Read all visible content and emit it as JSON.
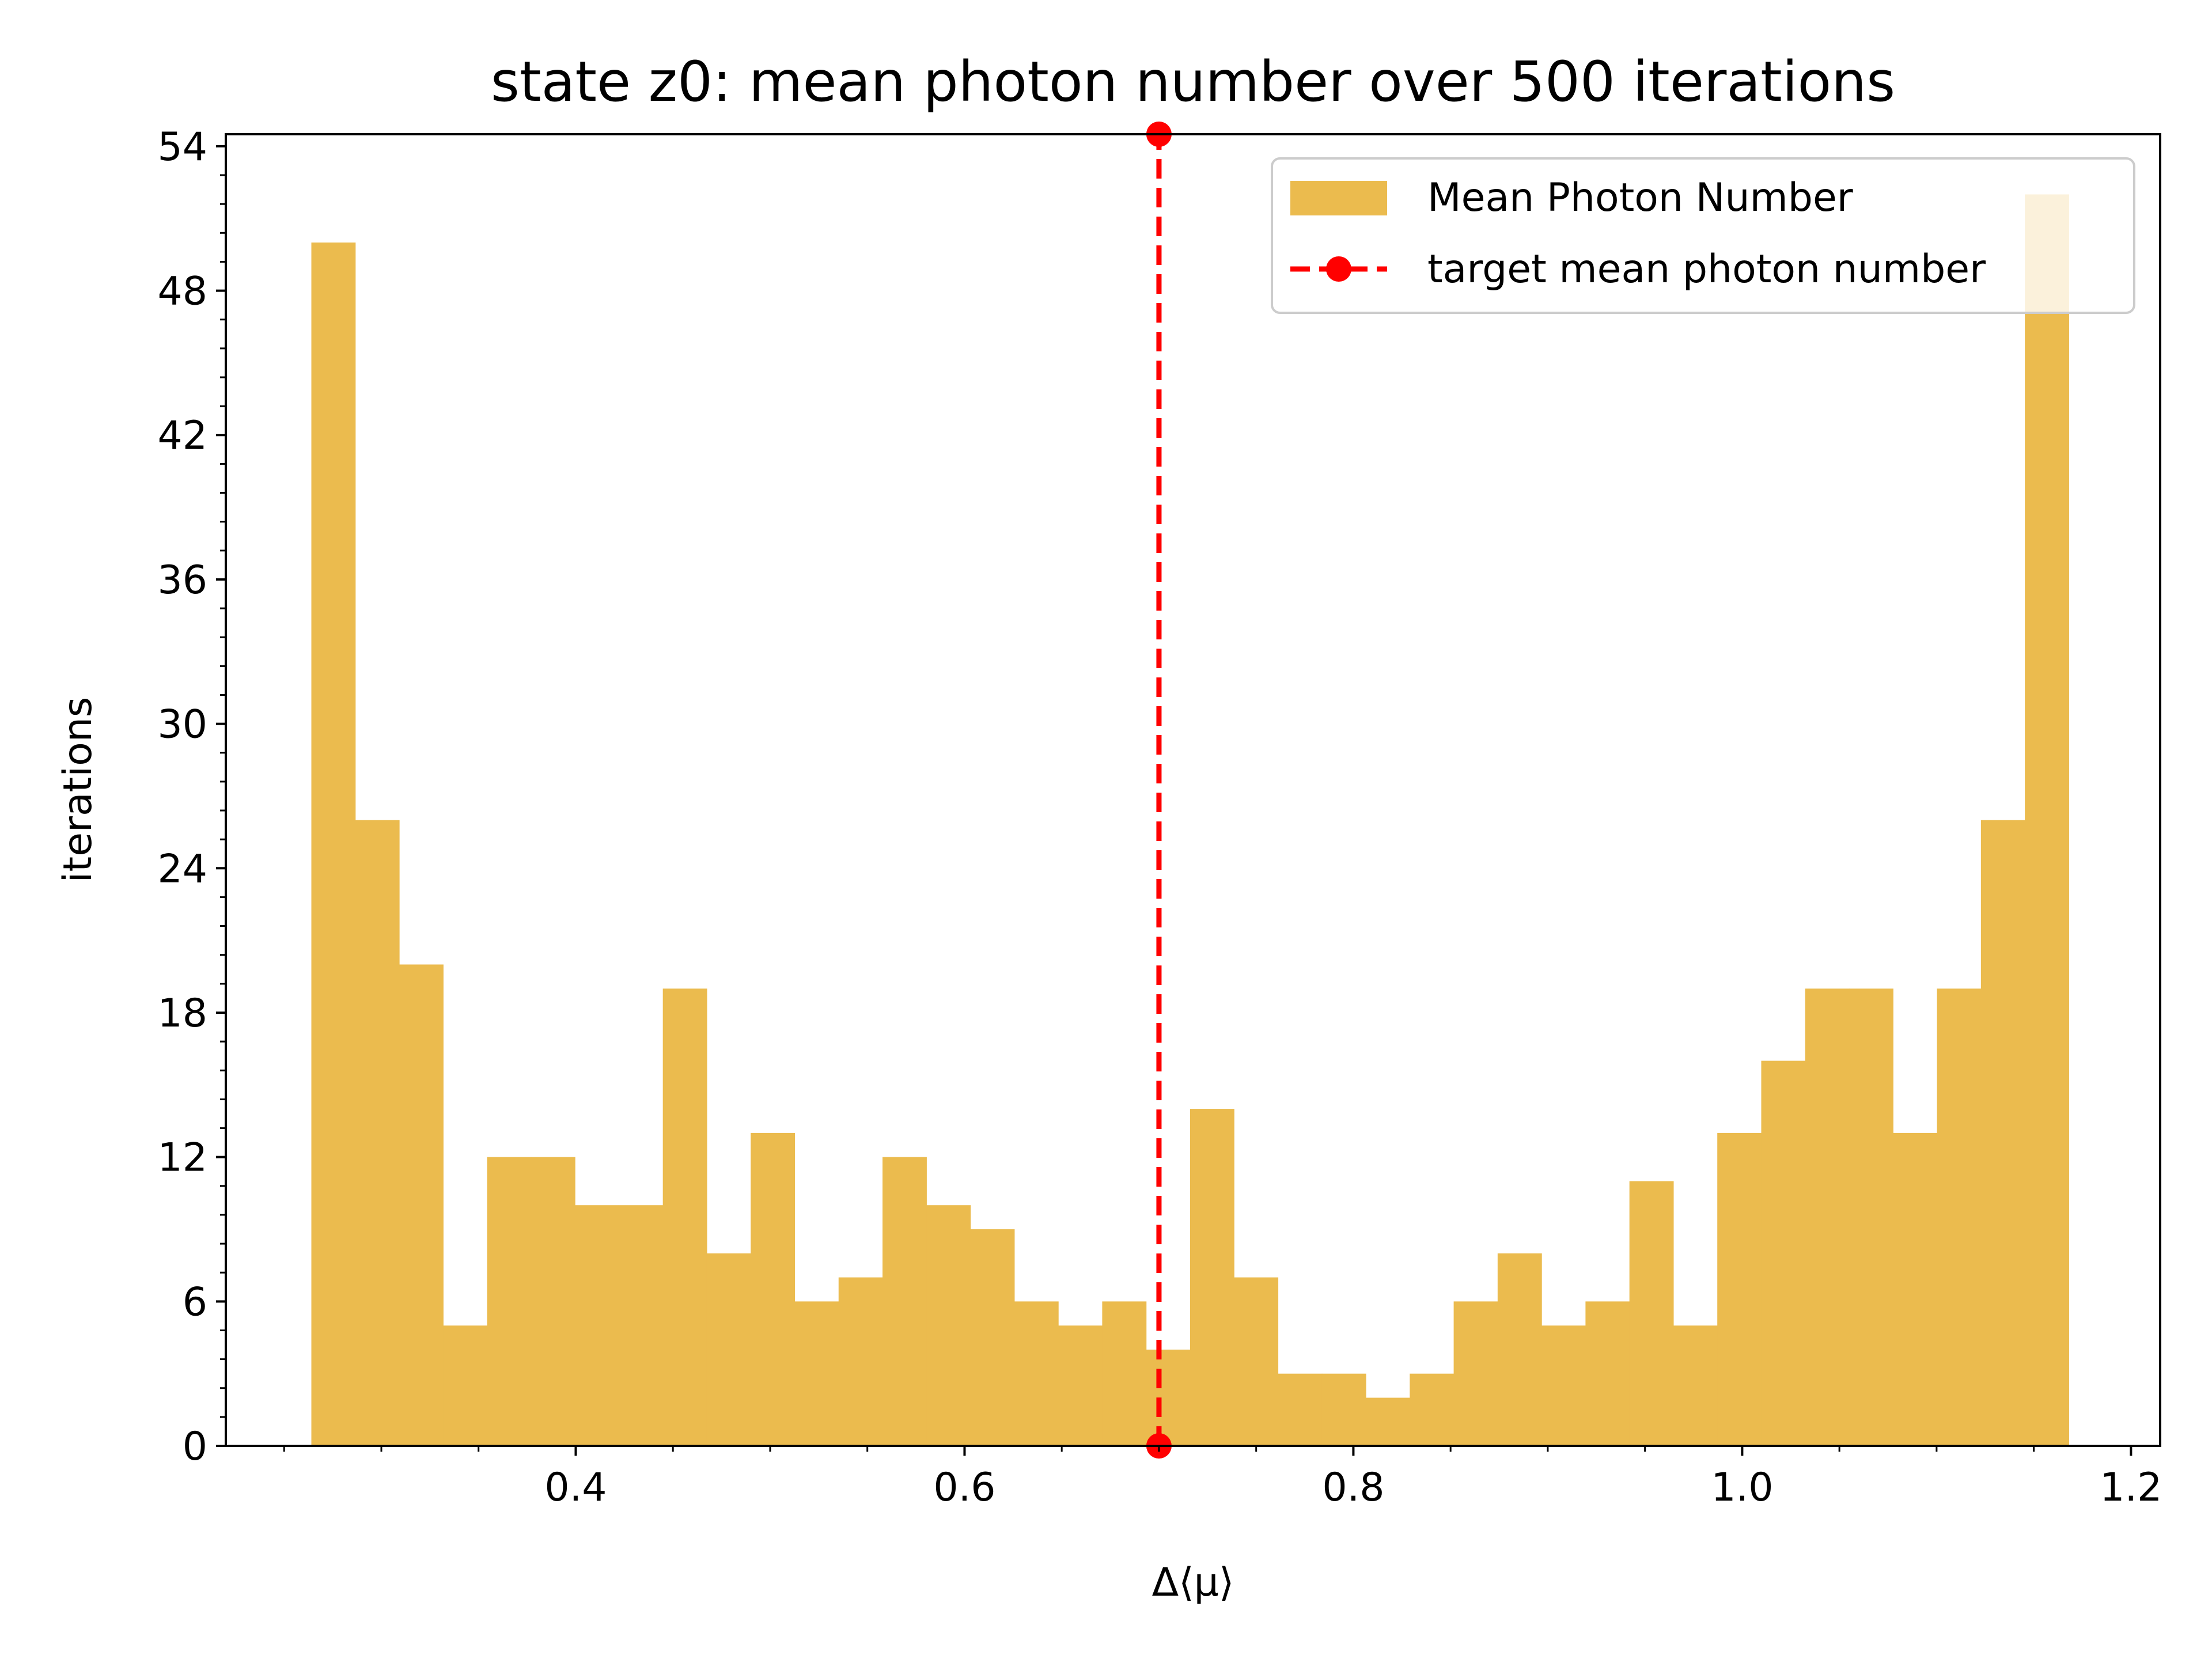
{
  "chart_data": {
    "type": "bar",
    "title": "state z0: mean photon number over 500 iterations",
    "xlabel": "Δ⟨μ⟩",
    "ylabel": "iterations",
    "xlim": [
      0.22,
      1.215
    ],
    "ylim": [
      0,
      54.5
    ],
    "bin_edges": [
      0.264,
      0.2866,
      0.3092,
      0.3318,
      0.3544,
      0.377,
      0.3996,
      0.4222,
      0.4448,
      0.4674,
      0.49,
      0.5126,
      0.5352,
      0.5578,
      0.5804,
      0.603,
      0.6256,
      0.6482,
      0.6708,
      0.6934,
      0.716,
      0.7386,
      0.7612,
      0.7838,
      0.8064,
      0.829,
      0.8516,
      0.8742,
      0.8968,
      0.9194,
      0.942,
      0.9646,
      0.9872,
      1.0098,
      1.0324,
      1.055,
      1.0776,
      1.1002,
      1.1228,
      1.1454,
      1.168
    ],
    "values": [
      50,
      26,
      20,
      5,
      12,
      12,
      10,
      10,
      19,
      8,
      13,
      6,
      7,
      12,
      10,
      9,
      6,
      5,
      6,
      4,
      14,
      7,
      3,
      3,
      2,
      3,
      6,
      8,
      5,
      6,
      11,
      5,
      13,
      16,
      19,
      19,
      13,
      19,
      26,
      52
    ],
    "x_ticks": [
      0.4,
      0.6,
      0.8,
      1.0,
      1.2
    ],
    "x_tick_labels": [
      "0.4",
      "0.6",
      "0.8",
      "1.0",
      "1.2"
    ],
    "y_ticks": [
      0,
      6,
      12,
      18,
      24,
      30,
      36,
      42,
      48,
      54
    ],
    "y_tick_labels": [
      "0",
      "6",
      "12",
      "18",
      "24",
      "30",
      "36",
      "42",
      "48",
      "54"
    ],
    "target_line": {
      "x": 0.7,
      "y": [
        0,
        54.5
      ],
      "style": "dashed",
      "marker": "circle"
    },
    "series": [
      {
        "name": "Mean Photon Number",
        "color": "#ebbb4e",
        "kind": "bar"
      },
      {
        "name": "target mean photon number",
        "color": "#ff0000",
        "kind": "line"
      }
    ],
    "grid": false,
    "legend_position": "top-right"
  }
}
